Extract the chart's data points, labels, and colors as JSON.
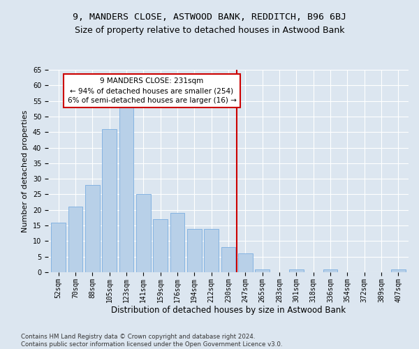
{
  "title1": "9, MANDERS CLOSE, ASTWOOD BANK, REDDITCH, B96 6BJ",
  "title2": "Size of property relative to detached houses in Astwood Bank",
  "xlabel": "Distribution of detached houses by size in Astwood Bank",
  "ylabel": "Number of detached properties",
  "categories": [
    "52sqm",
    "70sqm",
    "88sqm",
    "105sqm",
    "123sqm",
    "141sqm",
    "159sqm",
    "176sqm",
    "194sqm",
    "212sqm",
    "230sqm",
    "247sqm",
    "265sqm",
    "283sqm",
    "301sqm",
    "318sqm",
    "336sqm",
    "354sqm",
    "372sqm",
    "389sqm",
    "407sqm"
  ],
  "values": [
    16,
    21,
    28,
    46,
    54,
    25,
    17,
    19,
    14,
    14,
    8,
    6,
    1,
    0,
    1,
    0,
    1,
    0,
    0,
    0,
    1
  ],
  "bar_color": "#b8d0e8",
  "bar_edge_color": "#7aade0",
  "annotation_text": "9 MANDERS CLOSE: 231sqm\n← 94% of detached houses are smaller (254)\n6% of semi-detached houses are larger (16) →",
  "annotation_box_color": "#ffffff",
  "annotation_box_edge": "#cc0000",
  "vline_color": "#cc0000",
  "vline_index": 10,
  "ylim": [
    0,
    65
  ],
  "yticks": [
    0,
    5,
    10,
    15,
    20,
    25,
    30,
    35,
    40,
    45,
    50,
    55,
    60,
    65
  ],
  "footnote": "Contains HM Land Registry data © Crown copyright and database right 2024.\nContains public sector information licensed under the Open Government Licence v3.0.",
  "bg_color": "#dce6f0",
  "plot_bg_color": "#dce6f0",
  "title1_fontsize": 9.5,
  "title2_fontsize": 9,
  "tick_fontsize": 7,
  "xlabel_fontsize": 8.5,
  "ylabel_fontsize": 8
}
